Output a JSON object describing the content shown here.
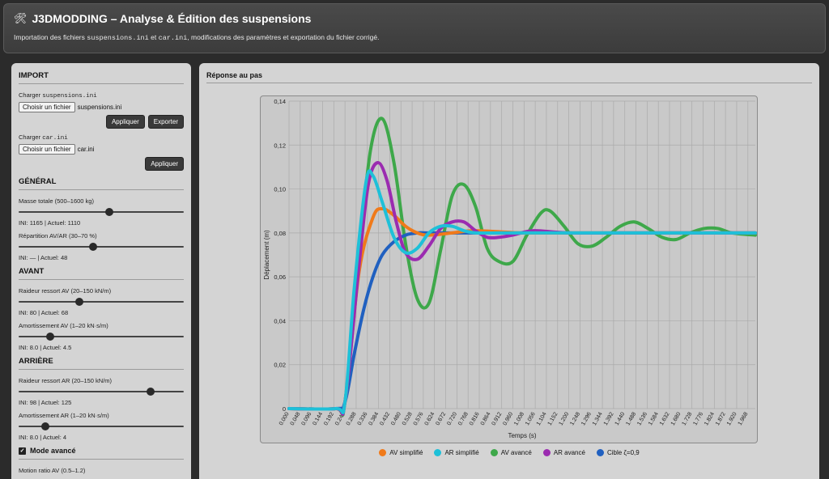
{
  "header": {
    "icon": "tools-icon",
    "title": "J3DMODDING – Analyse & Édition des suspensions",
    "desc_prefix": "Importation des fichiers",
    "file1": "suspensions.ini",
    "desc_mid": "et",
    "file2": "car.ini",
    "desc_suffix": ", modifications des paramètres et exportation du fichier corrigé."
  },
  "sidebar": {
    "import": {
      "title": "IMPORT",
      "load1_label": "Charger",
      "load1_file": "suspensions.ini",
      "file_button": "Choisir un fichier",
      "file1_name": "suspensions.ini",
      "apply_label": "Appliquer",
      "export_label": "Exporter",
      "load2_label": "Charger",
      "load2_file": "car.ini",
      "file2_name": "car.ini"
    },
    "general": {
      "title": "GÉNÉRAL",
      "mass_label": "Masse totale (500–1600 kg)",
      "mass_value": 0.55,
      "mass_vals": "INI: 1165   | Actuel: 1110",
      "dist_label": "Répartition AV/AR (30–70 %)",
      "dist_value": 0.45,
      "dist_vals": "INI: —   | Actuel: 48"
    },
    "avant": {
      "title": "AVANT",
      "spring_label": "Raideur ressort AV (20–150 kN/m)",
      "spring_value": 0.37,
      "spring_vals": "INI: 80   | Actuel: 68",
      "damp_label": "Amortissement AV (1–20 kN·s/m)",
      "damp_value": 0.19,
      "damp_vals": "INI: 8.0   | Actuel: 4.5"
    },
    "arriere": {
      "title": "ARRIÈRE",
      "spring_label": "Raideur ressort AR (20–150 kN/m)",
      "spring_value": 0.8,
      "spring_vals": "INI: 98   | Actuel: 125",
      "damp_label": "Amortissement AR (1–20 kN·s/m)",
      "damp_value": 0.16,
      "damp_vals": "INI: 8.0   | Actuel: 4"
    },
    "advanced": {
      "label": "Mode avancé",
      "checked": true,
      "motion_label": "Motion ratio AV (0.5–1.2)"
    }
  },
  "main": {
    "title": "Réponse au pas"
  },
  "chart_data": {
    "type": "line",
    "title": "",
    "xlabel": "Temps (s)",
    "ylabel": "Déplacement (m)",
    "ylim": [
      0,
      0.14
    ],
    "xlim": [
      0,
      2.0
    ],
    "y_ticks": [
      "0",
      "0,02",
      "0,04",
      "0,06",
      "0,08",
      "0,10",
      "0,12",
      "0,14"
    ],
    "x_ticks": [
      "0.000",
      "0.048",
      "0.096",
      "0.144",
      "0.192",
      "0.240",
      "0.288",
      "0.336",
      "0.384",
      "0.432",
      "0.480",
      "0.528",
      "0.576",
      "0.624",
      "0.672",
      "0.720",
      "0.768",
      "0.816",
      "0.864",
      "0.912",
      "0.960",
      "1.008",
      "1.056",
      "1.104",
      "1.152",
      "1.200",
      "1.248",
      "1.296",
      "1.344",
      "1.392",
      "1.440",
      "1.488",
      "1.536",
      "1.584",
      "1.632",
      "1.680",
      "1.728",
      "1.776",
      "1.824",
      "1.872",
      "1.920",
      "1.968"
    ],
    "grid": true,
    "legend_position": "bottom",
    "series": [
      {
        "name": "AV simplifié",
        "color": "#f07a1a",
        "x": [
          0,
          0.2,
          0.24,
          0.3,
          0.36,
          0.4,
          0.45,
          0.5,
          0.55,
          0.6,
          0.7,
          0.8,
          1.0,
          1.2,
          1.5,
          2.0
        ],
        "y": [
          0,
          0,
          0.003,
          0.062,
          0.087,
          0.091,
          0.088,
          0.083,
          0.08,
          0.079,
          0.08,
          0.081,
          0.08,
          0.08,
          0.08,
          0.08
        ]
      },
      {
        "name": "AR simplifié",
        "color": "#1ec0d8",
        "x": [
          0,
          0.2,
          0.24,
          0.28,
          0.33,
          0.36,
          0.4,
          0.45,
          0.5,
          0.55,
          0.6,
          0.65,
          0.7,
          0.75,
          0.8,
          0.9,
          1.0,
          1.2,
          1.5,
          2.0
        ],
        "y": [
          0,
          0,
          0.003,
          0.055,
          0.103,
          0.106,
          0.094,
          0.078,
          0.071,
          0.073,
          0.08,
          0.083,
          0.083,
          0.081,
          0.08,
          0.08,
          0.08,
          0.08,
          0.08,
          0.08
        ]
      },
      {
        "name": "AV avancé",
        "color": "#3ea84a",
        "x": [
          0,
          0.2,
          0.24,
          0.3,
          0.35,
          0.4,
          0.45,
          0.5,
          0.55,
          0.6,
          0.65,
          0.7,
          0.75,
          0.8,
          0.85,
          0.9,
          0.96,
          1.02,
          1.08,
          1.12,
          1.18,
          1.24,
          1.3,
          1.36,
          1.42,
          1.48,
          1.54,
          1.6,
          1.66,
          1.72,
          1.78,
          1.84,
          1.9,
          2.0
        ],
        "y": [
          0,
          0,
          0.003,
          0.07,
          0.118,
          0.132,
          0.112,
          0.075,
          0.05,
          0.048,
          0.072,
          0.097,
          0.102,
          0.092,
          0.073,
          0.067,
          0.067,
          0.079,
          0.089,
          0.09,
          0.083,
          0.075,
          0.074,
          0.078,
          0.083,
          0.085,
          0.082,
          0.078,
          0.077,
          0.08,
          0.082,
          0.082,
          0.08,
          0.079
        ]
      },
      {
        "name": "AR avancé",
        "color": "#9b2bb0",
        "x": [
          0,
          0.2,
          0.24,
          0.3,
          0.34,
          0.38,
          0.42,
          0.46,
          0.5,
          0.55,
          0.6,
          0.65,
          0.7,
          0.75,
          0.8,
          0.85,
          0.9,
          0.96,
          1.05,
          1.2,
          1.5,
          2.0
        ],
        "y": [
          0,
          0,
          0.003,
          0.065,
          0.102,
          0.112,
          0.104,
          0.085,
          0.071,
          0.068,
          0.074,
          0.082,
          0.085,
          0.085,
          0.081,
          0.078,
          0.078,
          0.079,
          0.081,
          0.08,
          0.08,
          0.08
        ]
      },
      {
        "name": "Cible ζ=0,9",
        "color": "#2060c0",
        "x": [
          0,
          0.2,
          0.24,
          0.28,
          0.32,
          0.36,
          0.4,
          0.45,
          0.5,
          0.55,
          0.6,
          0.7,
          0.8,
          1.0,
          1.5,
          2.0
        ],
        "y": [
          0,
          0,
          0.003,
          0.025,
          0.045,
          0.06,
          0.07,
          0.076,
          0.079,
          0.08,
          0.08,
          0.08,
          0.08,
          0.08,
          0.08,
          0.08
        ]
      }
    ]
  }
}
